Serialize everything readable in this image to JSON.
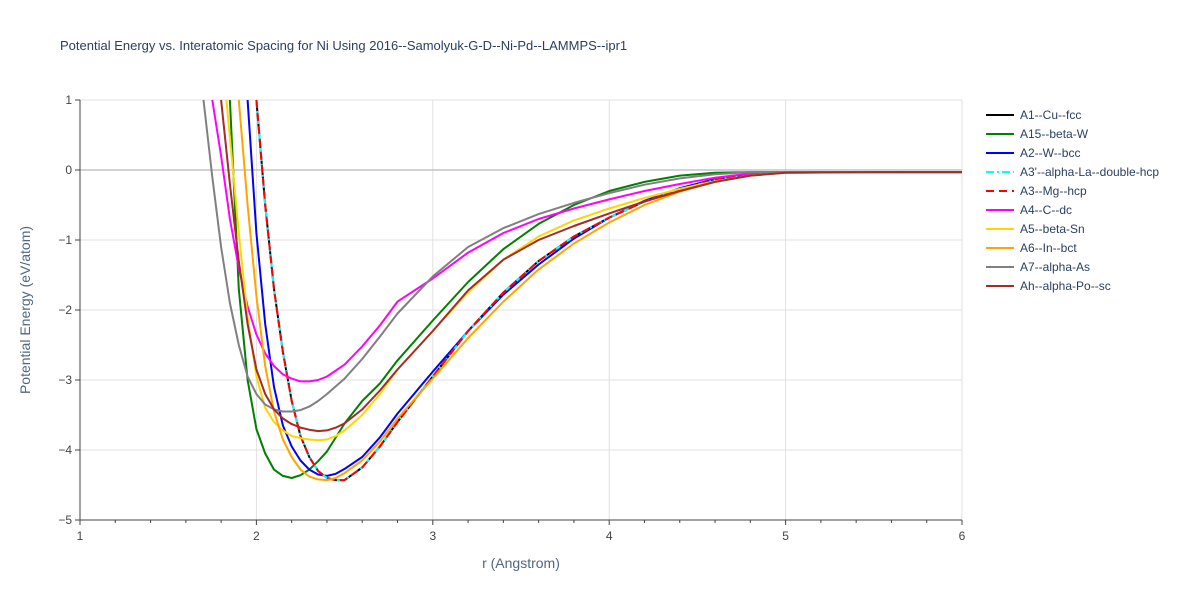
{
  "chart_data": {
    "type": "line",
    "title": "Potential Energy vs. Interatomic Spacing for Ni Using 2016--Samolyuk-G-D--Ni-Pd--LAMMPS--ipr1",
    "xlabel": "r (Angstrom)",
    "ylabel": "Potential Energy (eV/atom)",
    "xlim": [
      1,
      6
    ],
    "ylim": [
      -5,
      1
    ],
    "xticks": [
      1,
      2,
      3,
      4,
      5,
      6
    ],
    "yticks": [
      1,
      0,
      -1,
      -2,
      -3,
      -4,
      -5
    ],
    "xtick_labels": [
      "1",
      "2",
      "3",
      "4",
      "5",
      "6"
    ],
    "ytick_labels": [
      "1",
      "0",
      "−1",
      "−2",
      "−3",
      "−4",
      "−5"
    ],
    "grid": true,
    "legend_position": "right",
    "series": [
      {
        "name": "A1--Cu--fcc",
        "color": "#000000",
        "dash": "solid",
        "x": [
          2.0,
          2.05,
          2.1,
          2.15,
          2.2,
          2.25,
          2.3,
          2.35,
          2.4,
          2.45,
          2.5,
          2.6,
          2.7,
          2.8,
          3.0,
          3.2,
          3.4,
          3.6,
          3.8,
          4.0,
          4.2,
          4.4,
          4.6,
          4.8,
          5.0,
          5.5,
          6.0
        ],
        "y": [
          1.0,
          -0.5,
          -1.7,
          -2.6,
          -3.3,
          -3.8,
          -4.1,
          -4.3,
          -4.4,
          -4.43,
          -4.43,
          -4.25,
          -3.95,
          -3.6,
          -2.95,
          -2.3,
          -1.75,
          -1.3,
          -0.95,
          -0.68,
          -0.45,
          -0.28,
          -0.14,
          -0.06,
          -0.03,
          -0.03,
          -0.03
        ]
      },
      {
        "name": "A15--beta-W",
        "color": "#008000",
        "dash": "solid",
        "x": [
          1.85,
          1.9,
          1.95,
          2.0,
          2.05,
          2.1,
          2.15,
          2.2,
          2.25,
          2.3,
          2.35,
          2.4,
          2.5,
          2.6,
          2.7,
          2.8,
          3.0,
          3.2,
          3.4,
          3.6,
          3.8,
          4.0,
          4.2,
          4.4,
          4.6,
          4.8,
          5.0,
          5.5,
          6.0
        ],
        "y": [
          1.0,
          -1.7,
          -3.0,
          -3.7,
          -4.05,
          -4.28,
          -4.37,
          -4.4,
          -4.36,
          -4.28,
          -4.16,
          -4.02,
          -3.62,
          -3.3,
          -3.05,
          -2.72,
          -2.15,
          -1.6,
          -1.13,
          -0.77,
          -0.5,
          -0.3,
          -0.17,
          -0.08,
          -0.04,
          -0.03,
          -0.03,
          -0.03,
          -0.03
        ]
      },
      {
        "name": "A2--W--bcc",
        "color": "#0000ff",
        "dash": "solid",
        "x": [
          1.95,
          2.0,
          2.05,
          2.1,
          2.15,
          2.2,
          2.25,
          2.3,
          2.35,
          2.4,
          2.45,
          2.5,
          2.6,
          2.7,
          2.8,
          3.0,
          3.2,
          3.4,
          3.6,
          3.8,
          4.0,
          4.2,
          4.4,
          4.6,
          4.8,
          5.0,
          5.5,
          6.0
        ],
        "y": [
          1.0,
          -0.9,
          -2.2,
          -3.1,
          -3.65,
          -3.95,
          -4.15,
          -4.28,
          -4.35,
          -4.37,
          -4.34,
          -4.27,
          -4.1,
          -3.82,
          -3.48,
          -2.88,
          -2.3,
          -1.78,
          -1.35,
          -0.98,
          -0.68,
          -0.44,
          -0.26,
          -0.13,
          -0.06,
          -0.03,
          -0.03,
          -0.03
        ]
      },
      {
        "name": "A3'--alpha-La--double-hcp",
        "color": "#00ffff",
        "dash": "dashdot",
        "x": [
          2.0,
          2.05,
          2.1,
          2.15,
          2.2,
          2.25,
          2.3,
          2.35,
          2.4,
          2.45,
          2.5,
          2.6,
          2.7,
          2.8,
          3.0,
          3.2,
          3.4,
          3.6,
          3.8,
          4.0,
          4.2,
          4.4,
          4.6,
          4.8,
          5.0,
          5.5,
          6.0
        ],
        "y": [
          1.0,
          -0.5,
          -1.7,
          -2.6,
          -3.3,
          -3.8,
          -4.1,
          -4.3,
          -4.4,
          -4.43,
          -4.43,
          -4.25,
          -3.95,
          -3.6,
          -2.95,
          -2.3,
          -1.75,
          -1.3,
          -0.95,
          -0.68,
          -0.45,
          -0.28,
          -0.14,
          -0.06,
          -0.03,
          -0.03,
          -0.03
        ]
      },
      {
        "name": "A3--Mg--hcp",
        "color": "#ff0000",
        "dash": "dash",
        "x": [
          2.0,
          2.05,
          2.1,
          2.15,
          2.2,
          2.25,
          2.3,
          2.35,
          2.4,
          2.45,
          2.5,
          2.6,
          2.7,
          2.8,
          3.0,
          3.2,
          3.4,
          3.6,
          3.8,
          4.0,
          4.2,
          4.4,
          4.6,
          4.8,
          5.0,
          5.5,
          6.0
        ],
        "y": [
          1.0,
          -0.5,
          -1.7,
          -2.6,
          -3.3,
          -3.8,
          -4.1,
          -4.3,
          -4.4,
          -4.43,
          -4.43,
          -4.25,
          -3.95,
          -3.6,
          -2.95,
          -2.3,
          -1.75,
          -1.3,
          -0.95,
          -0.68,
          -0.45,
          -0.28,
          -0.14,
          -0.06,
          -0.03,
          -0.03,
          -0.03
        ]
      },
      {
        "name": "A4--C--dc",
        "color": "#ff00ff",
        "dash": "solid",
        "x": [
          1.75,
          1.8,
          1.85,
          1.9,
          1.95,
          2.0,
          2.05,
          2.1,
          2.15,
          2.2,
          2.25,
          2.3,
          2.35,
          2.4,
          2.5,
          2.6,
          2.7,
          2.8,
          3.0,
          3.2,
          3.4,
          3.6,
          3.8,
          4.0,
          4.2,
          4.4,
          4.6,
          4.8,
          5.0,
          5.5,
          6.0
        ],
        "y": [
          1.0,
          0.2,
          -0.7,
          -1.4,
          -1.95,
          -2.35,
          -2.62,
          -2.8,
          -2.92,
          -2.98,
          -3.02,
          -3.02,
          -3.0,
          -2.95,
          -2.78,
          -2.52,
          -2.22,
          -1.88,
          -1.55,
          -1.18,
          -0.9,
          -0.7,
          -0.55,
          -0.42,
          -0.3,
          -0.2,
          -0.11,
          -0.05,
          -0.03,
          -0.03,
          -0.03
        ]
      },
      {
        "name": "A5--beta-Sn",
        "color": "#ffd700",
        "dash": "solid",
        "x": [
          1.83,
          1.9,
          1.95,
          2.0,
          2.05,
          2.1,
          2.15,
          2.2,
          2.25,
          2.3,
          2.35,
          2.4,
          2.45,
          2.5,
          2.6,
          2.7,
          2.8,
          3.0,
          3.2,
          3.4,
          3.6,
          3.8,
          4.0,
          4.2,
          4.4,
          4.6,
          4.8,
          5.0,
          5.5,
          6.0
        ],
        "y": [
          1.0,
          -0.9,
          -2.1,
          -2.95,
          -3.4,
          -3.6,
          -3.72,
          -3.8,
          -3.83,
          -3.85,
          -3.86,
          -3.85,
          -3.8,
          -3.72,
          -3.5,
          -3.2,
          -2.85,
          -2.3,
          -1.75,
          -1.28,
          -0.95,
          -0.72,
          -0.55,
          -0.4,
          -0.27,
          -0.16,
          -0.08,
          -0.04,
          -0.03,
          -0.03
        ]
      },
      {
        "name": "A6--In--bct",
        "color": "#ffa500",
        "dash": "solid",
        "x": [
          1.9,
          1.95,
          2.0,
          2.05,
          2.1,
          2.15,
          2.2,
          2.25,
          2.3,
          2.35,
          2.4,
          2.45,
          2.5,
          2.6,
          2.7,
          2.8,
          3.0,
          3.2,
          3.4,
          3.6,
          3.8,
          4.0,
          4.2,
          4.4,
          4.6,
          4.8,
          5.0,
          5.5,
          6.0
        ],
        "y": [
          1.0,
          -0.5,
          -1.8,
          -2.8,
          -3.45,
          -3.85,
          -4.1,
          -4.28,
          -4.38,
          -4.42,
          -4.43,
          -4.4,
          -4.33,
          -4.15,
          -3.88,
          -3.55,
          -2.98,
          -2.4,
          -1.88,
          -1.42,
          -1.05,
          -0.75,
          -0.5,
          -0.31,
          -0.17,
          -0.08,
          -0.04,
          -0.03,
          -0.03
        ]
      },
      {
        "name": "A7--alpha-As",
        "color": "#808080",
        "dash": "solid",
        "x": [
          1.7,
          1.75,
          1.8,
          1.85,
          1.9,
          1.95,
          2.0,
          2.05,
          2.1,
          2.15,
          2.2,
          2.25,
          2.3,
          2.35,
          2.4,
          2.5,
          2.6,
          2.7,
          2.8,
          3.0,
          3.2,
          3.4,
          3.6,
          3.8,
          4.0,
          4.2,
          4.4,
          4.6,
          4.8,
          5.0,
          5.5,
          6.0
        ],
        "y": [
          1.0,
          -0.1,
          -1.1,
          -1.9,
          -2.5,
          -2.95,
          -3.2,
          -3.35,
          -3.42,
          -3.45,
          -3.45,
          -3.43,
          -3.38,
          -3.3,
          -3.2,
          -2.98,
          -2.7,
          -2.38,
          -2.05,
          -1.52,
          -1.1,
          -0.83,
          -0.63,
          -0.47,
          -0.33,
          -0.21,
          -0.12,
          -0.06,
          -0.03,
          -0.03,
          -0.03,
          -0.03
        ]
      },
      {
        "name": "Ah--alpha-Po--sc",
        "color": "#a52a2a",
        "dash": "solid",
        "x": [
          1.8,
          1.85,
          1.9,
          1.95,
          2.0,
          2.05,
          2.1,
          2.15,
          2.2,
          2.25,
          2.3,
          2.35,
          2.4,
          2.45,
          2.5,
          2.6,
          2.7,
          2.8,
          3.0,
          3.2,
          3.4,
          3.6,
          3.8,
          4.0,
          4.2,
          4.4,
          4.6,
          4.8,
          5.0,
          5.5,
          6.0
        ],
        "y": [
          1.0,
          -0.2,
          -1.3,
          -2.2,
          -2.85,
          -3.2,
          -3.42,
          -3.55,
          -3.63,
          -3.68,
          -3.71,
          -3.73,
          -3.72,
          -3.68,
          -3.62,
          -3.42,
          -3.15,
          -2.85,
          -2.3,
          -1.72,
          -1.28,
          -1.0,
          -0.8,
          -0.62,
          -0.45,
          -0.3,
          -0.17,
          -0.08,
          -0.04,
          -0.03,
          -0.03
        ]
      }
    ]
  }
}
